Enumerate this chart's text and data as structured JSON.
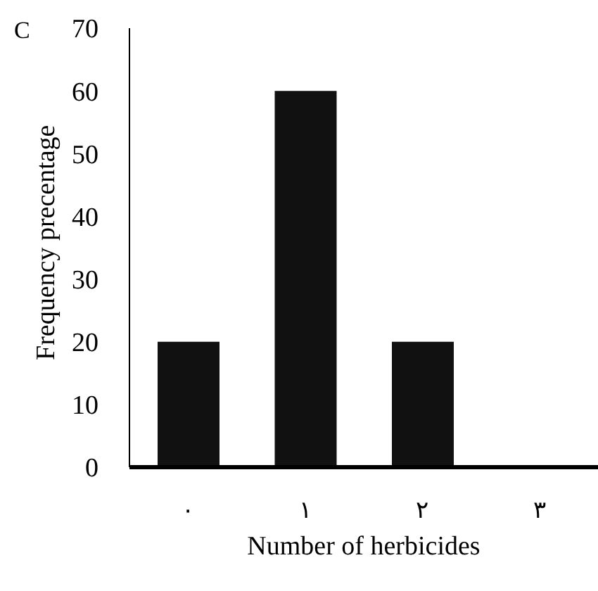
{
  "chart_data": {
    "type": "bar",
    "annotations": [
      "C"
    ],
    "xlabel": "Number of herbicides",
    "ylabel": "Frequency precentage",
    "categories": [
      "۰",
      "۱",
      "۲",
      "۳"
    ],
    "values": [
      20,
      60,
      20,
      0
    ],
    "color": "#111111",
    "ylim": [
      0,
      70
    ],
    "yticks": [
      0,
      10,
      20,
      30,
      40,
      50,
      60,
      70
    ],
    "grid": false
  }
}
